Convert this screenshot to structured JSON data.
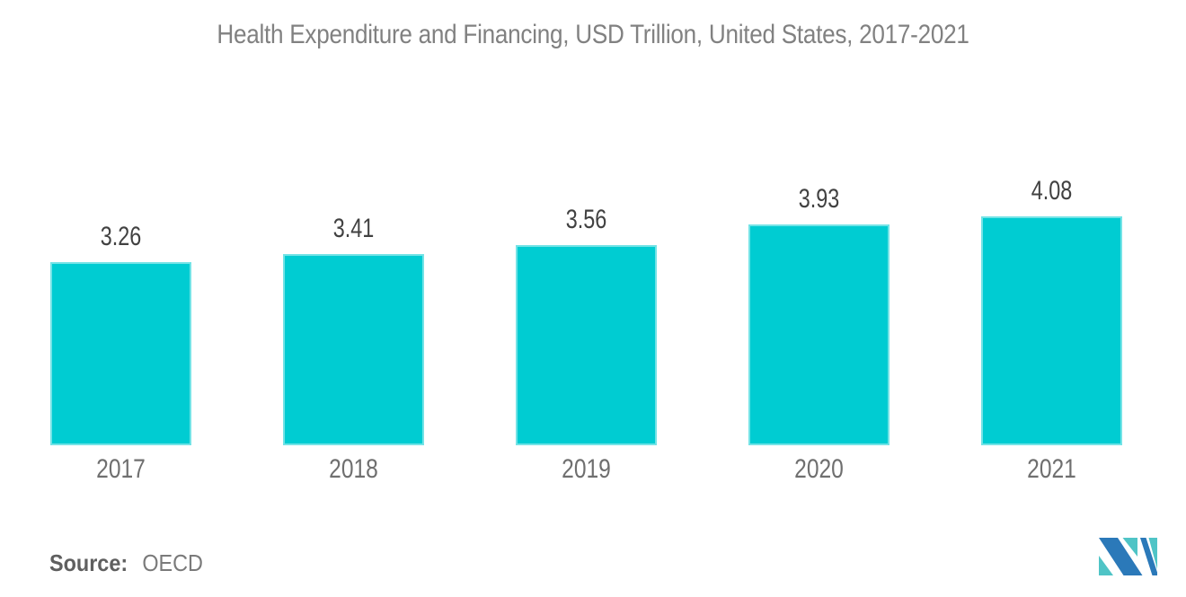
{
  "title": "Health Expenditure and Financing, USD Trillion, United States, 2017-2021",
  "source": {
    "label": "Source:",
    "value": "OECD"
  },
  "colors": {
    "bar": "#00CCD2",
    "title_text": "#818181",
    "value_label": "#414141",
    "year_label": "#6F6F6F",
    "logo_blue": "#2B79B9",
    "logo_teal": "#4FC4C6"
  },
  "chart_data": {
    "type": "bar",
    "title": "Health Expenditure and Financing, USD Trillion, United States, 2017-2021",
    "categories": [
      "2017",
      "2018",
      "2019",
      "2020",
      "2021"
    ],
    "values": [
      3.26,
      3.41,
      3.56,
      3.93,
      4.08
    ],
    "value_labels": [
      "3.26",
      "3.41",
      "3.56",
      "3.93",
      "4.08"
    ],
    "xlabel": "",
    "ylabel": "",
    "ylim": [
      0,
      4.3
    ],
    "grid": false,
    "legend": false,
    "bar_color": "#00CCD2",
    "value_labels_position": "above-bars",
    "source_note": "Source: OECD"
  }
}
